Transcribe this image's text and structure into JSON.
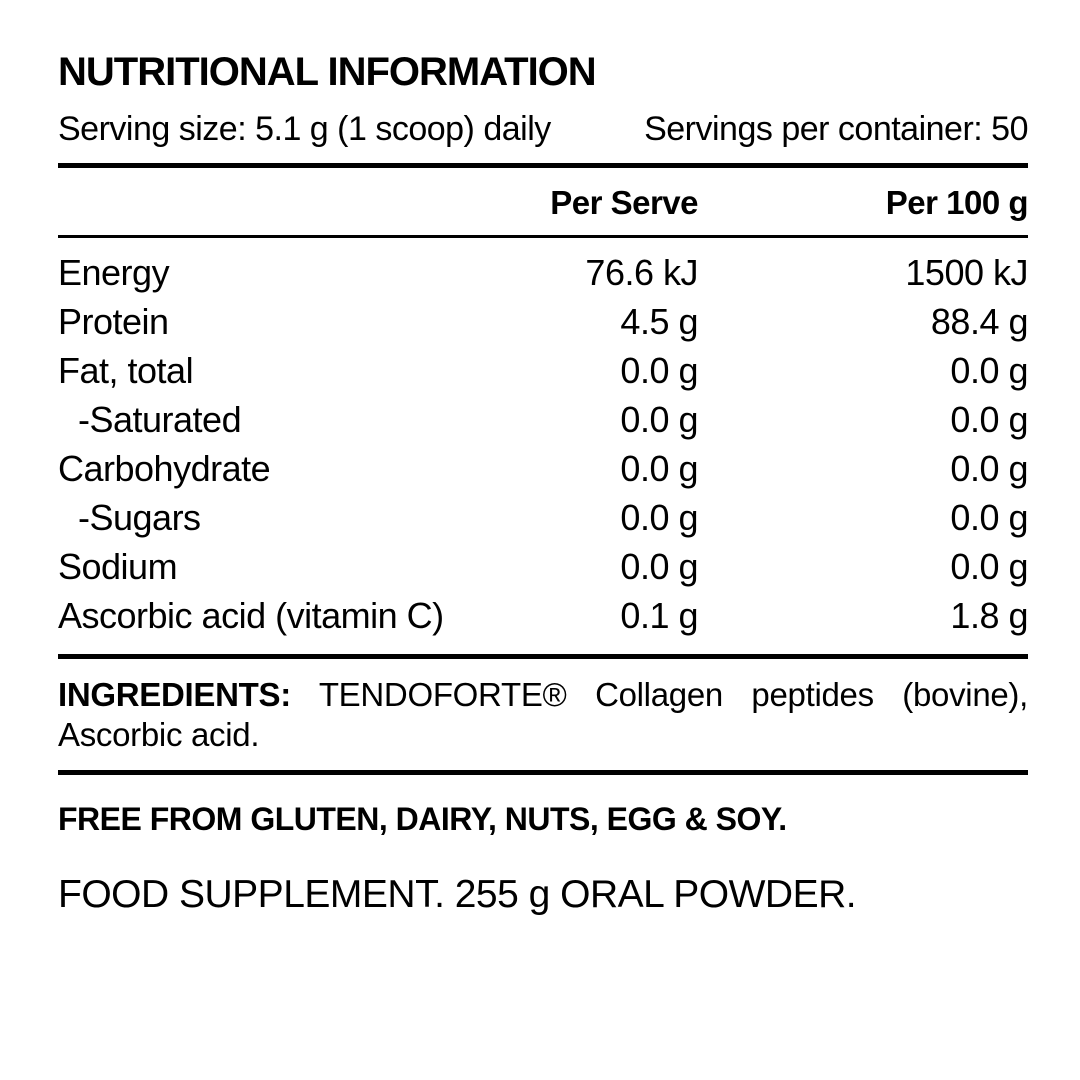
{
  "header": {
    "title": "NUTRITIONAL INFORMATION",
    "serving_size": "Serving size: 5.1 g (1 scoop) daily",
    "servings_per_container": "Servings per container: 50"
  },
  "table": {
    "columns": [
      "",
      "Per Serve",
      "Per 100 g"
    ],
    "rows": [
      {
        "label": "Energy",
        "indent": false,
        "per_serve": "76.6 kJ",
        "per_100g": "1500 kJ"
      },
      {
        "label": "Protein",
        "indent": false,
        "per_serve": "4.5 g",
        "per_100g": "88.4 g"
      },
      {
        "label": "Fat, total",
        "indent": false,
        "per_serve": "0.0 g",
        "per_100g": "0.0 g"
      },
      {
        "label": "-Saturated",
        "indent": true,
        "per_serve": "0.0 g",
        "per_100g": "0.0 g"
      },
      {
        "label": "Carbohydrate",
        "indent": false,
        "per_serve": "0.0 g",
        "per_100g": "0.0 g"
      },
      {
        "label": "-Sugars",
        "indent": true,
        "per_serve": "0.0 g",
        "per_100g": "0.0 g"
      },
      {
        "label": "Sodium",
        "indent": false,
        "per_serve": "0.0 g",
        "per_100g": "0.0 g"
      },
      {
        "label": "Ascorbic acid (vitamin C)",
        "indent": false,
        "per_serve": "0.1 g",
        "per_100g": "1.8 g"
      }
    ]
  },
  "ingredients": {
    "label": "INGREDIENTS:",
    "text": "TENDOFORTE® Collagen peptides (bovine), Ascorbic acid."
  },
  "free_from": "FREE FROM GLUTEN, DAIRY, NUTS, EGG & SOY.",
  "supplement": "FOOD SUPPLEMENT. 255 g ORAL POWDER.",
  "colors": {
    "text": "#000000",
    "background": "#ffffff"
  }
}
